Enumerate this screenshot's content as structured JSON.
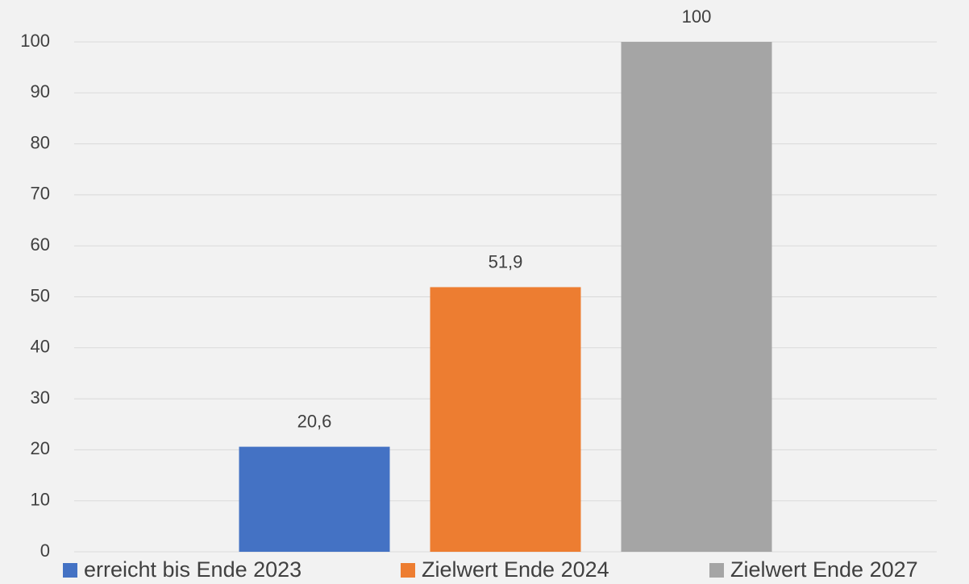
{
  "chart_data": {
    "type": "bar",
    "categories": [
      null
    ],
    "series": [
      {
        "name": "erreicht bis Ende 2023",
        "color": "#4472c4",
        "values": [
          20.6
        ],
        "value_labels": [
          "20,6"
        ]
      },
      {
        "name": "Zielwert Ende 2024",
        "color": "#ed7d31",
        "values": [
          51.9
        ],
        "value_labels": [
          "51,9"
        ]
      },
      {
        "name": "Zielwert Ende 2027",
        "color": "#a5a5a5",
        "values": [
          100
        ],
        "value_labels": [
          "100"
        ]
      }
    ],
    "ylim": [
      0,
      100
    ],
    "yticks": [
      0,
      10,
      20,
      30,
      40,
      50,
      60,
      70,
      80,
      90,
      100
    ],
    "grid": true,
    "legend": "bottom"
  }
}
